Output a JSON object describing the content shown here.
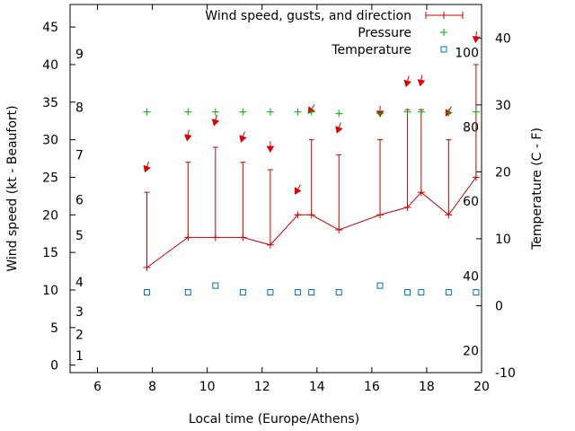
{
  "chart_data": {
    "type": "line",
    "title": "",
    "xlabel": "Local time (Europe/Athens)",
    "ylabel": "Wind speed (kt - Beaufort)",
    "y2label": "Temperature (C - F)",
    "xlim": [
      5,
      20
    ],
    "ylim": [
      -1,
      48
    ],
    "y2lim": [
      -10,
      45
    ],
    "x_ticks": [
      6,
      8,
      10,
      12,
      14,
      16,
      18,
      20
    ],
    "y_ticks": [
      0,
      5,
      10,
      15,
      20,
      25,
      30,
      35,
      40,
      45
    ],
    "y2_ticks": [
      -10,
      0,
      10,
      20,
      30,
      40
    ],
    "beaufort_labels": [
      {
        "text": "1",
        "wind": 1.3
      },
      {
        "text": "2",
        "wind": 4.1
      },
      {
        "text": "3",
        "wind": 7.1
      },
      {
        "text": "4",
        "wind": 11.1
      },
      {
        "text": "5",
        "wind": 17.3
      },
      {
        "text": "6",
        "wind": 22.0
      },
      {
        "text": "7",
        "wind": 28.0
      },
      {
        "text": "8",
        "wind": 34.3
      },
      {
        "text": "9",
        "wind": 41.4
      }
    ],
    "fahrenheit_labels": [
      {
        "text": "20",
        "temp": -6.7
      },
      {
        "text": "40",
        "temp": 4.4
      },
      {
        "text": "60",
        "temp": 15.6
      },
      {
        "text": "80",
        "temp": 26.7
      },
      {
        "text": "100",
        "temp": 37.8
      }
    ],
    "legend_position": "top-right",
    "series": [
      {
        "name": "Wind speed, gusts, and direction",
        "color": "#cc0000",
        "x": [
          7.8,
          9.3,
          10.3,
          11.3,
          12.3,
          13.3,
          13.8,
          14.8,
          16.3,
          17.3,
          17.8,
          18.8,
          19.8
        ],
        "speed": [
          13,
          17,
          17,
          17,
          16,
          20,
          20,
          18,
          20,
          21,
          23,
          20,
          25
        ],
        "gust": [
          23,
          27,
          29,
          27,
          26,
          20,
          30,
          28,
          30,
          34,
          34,
          30,
          40
        ]
      },
      {
        "name": "Pressure",
        "color": "#00aa00",
        "x": [
          7.8,
          9.3,
          10.3,
          11.3,
          12.3,
          13.3,
          13.8,
          14.8,
          16.3,
          17.3,
          17.8,
          18.8,
          19.8
        ],
        "y": [
          33.7,
          33.7,
          33.7,
          33.7,
          33.7,
          33.7,
          33.7,
          33.5,
          33.5,
          33.7,
          33.7,
          33.6,
          33.7
        ]
      },
      {
        "name": "Temperature",
        "color": "#0070c0",
        "x": [
          7.8,
          9.3,
          10.3,
          11.3,
          12.3,
          13.3,
          13.8,
          14.8,
          16.3,
          17.3,
          17.8,
          18.8,
          19.8
        ],
        "y": [
          2,
          2,
          3,
          2,
          2,
          2,
          2,
          2,
          3,
          2,
          2,
          2,
          2
        ]
      }
    ],
    "wind_arrows": [
      {
        "x": 7.8,
        "from": 20
      },
      {
        "x": 9.3,
        "from": 10
      },
      {
        "x": 10.3,
        "from": 15
      },
      {
        "x": 11.3,
        "from": 20
      },
      {
        "x": 12.3,
        "from": 0
      },
      {
        "x": 13.3,
        "from": 30
      },
      {
        "x": 13.8,
        "from": 35
      },
      {
        "x": 14.8,
        "from": 20
      },
      {
        "x": 16.3,
        "from": 0
      },
      {
        "x": 17.3,
        "from": 15
      },
      {
        "x": 17.8,
        "from": 10
      },
      {
        "x": 18.8,
        "from": 30
      },
      {
        "x": 19.8,
        "from": 5
      }
    ],
    "arrow_heights": [
      26.4,
      30.6,
      32.6,
      30.4,
      29.1,
      23.4,
      34.1,
      31.6,
      33.8,
      37.8,
      37.9,
      33.8,
      43.7
    ]
  }
}
